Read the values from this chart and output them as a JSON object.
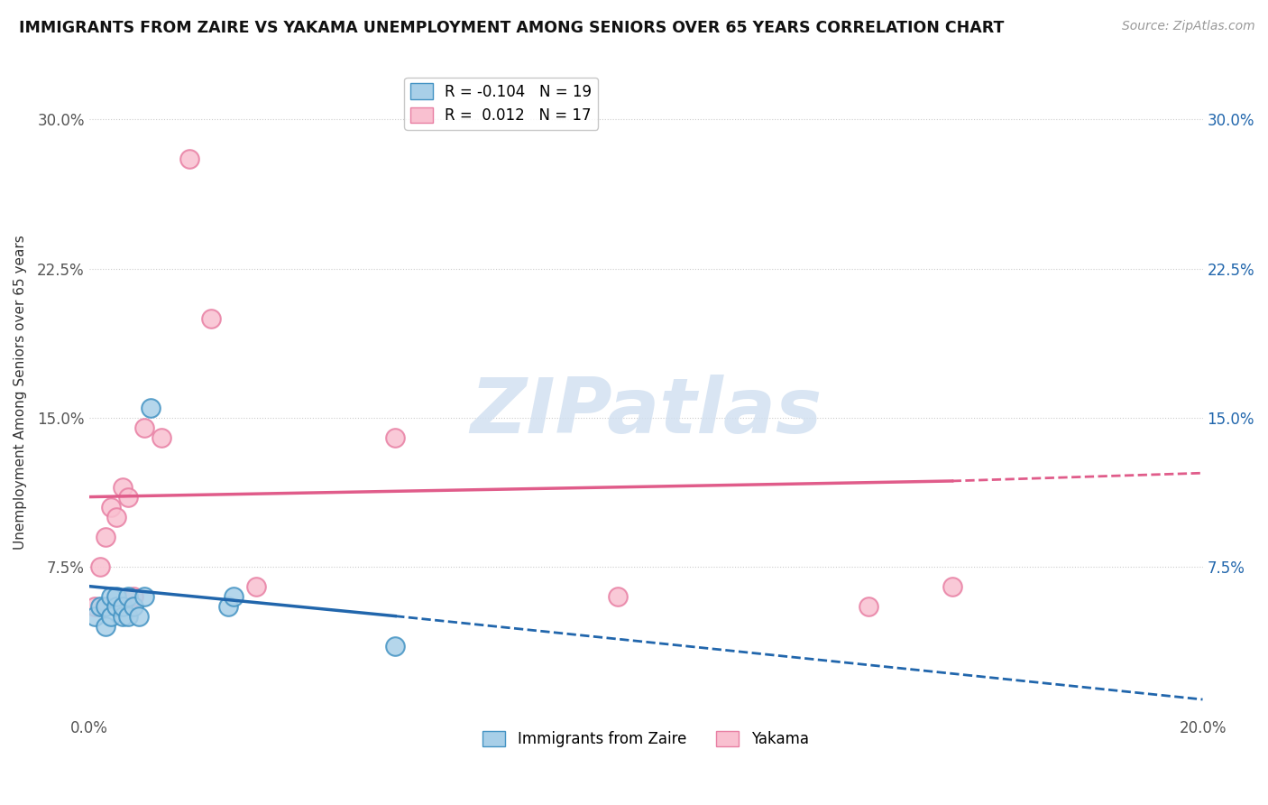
{
  "title": "IMMIGRANTS FROM ZAIRE VS YAKAMA UNEMPLOYMENT AMONG SENIORS OVER 65 YEARS CORRELATION CHART",
  "source": "Source: ZipAtlas.com",
  "xlabel": "",
  "ylabel": "Unemployment Among Seniors over 65 years",
  "xlim": [
    0.0,
    0.2
  ],
  "ylim": [
    0.0,
    0.325
  ],
  "xticks": [
    0.0,
    0.05,
    0.1,
    0.15,
    0.2
  ],
  "xticklabels": [
    "0.0%",
    "",
    "",
    "",
    "20.0%"
  ],
  "yticks": [
    0.075,
    0.15,
    0.225,
    0.3
  ],
  "yticklabels": [
    "7.5%",
    "15.0%",
    "22.5%",
    "30.0%"
  ],
  "blue_R": -0.104,
  "blue_N": 19,
  "pink_R": 0.012,
  "pink_N": 17,
  "blue_points_x": [
    0.001,
    0.002,
    0.003,
    0.003,
    0.004,
    0.004,
    0.005,
    0.005,
    0.006,
    0.006,
    0.007,
    0.007,
    0.008,
    0.009,
    0.01,
    0.011,
    0.025,
    0.026,
    0.055
  ],
  "blue_points_y": [
    0.05,
    0.055,
    0.045,
    0.055,
    0.05,
    0.06,
    0.055,
    0.06,
    0.05,
    0.055,
    0.06,
    0.05,
    0.055,
    0.05,
    0.06,
    0.155,
    0.055,
    0.06,
    0.035
  ],
  "pink_points_x": [
    0.001,
    0.002,
    0.003,
    0.004,
    0.005,
    0.006,
    0.007,
    0.008,
    0.01,
    0.013,
    0.018,
    0.022,
    0.03,
    0.055,
    0.095,
    0.14,
    0.155
  ],
  "pink_points_y": [
    0.055,
    0.075,
    0.09,
    0.105,
    0.1,
    0.115,
    0.11,
    0.06,
    0.145,
    0.14,
    0.28,
    0.2,
    0.065,
    0.14,
    0.06,
    0.055,
    0.065
  ],
  "blue_line_start_x": 0.0,
  "blue_line_start_y": 0.065,
  "blue_line_solid_end_x": 0.055,
  "blue_line_solid_end_y": 0.05,
  "blue_line_end_x": 0.2,
  "blue_line_end_y": 0.008,
  "pink_line_start_x": 0.0,
  "pink_line_start_y": 0.11,
  "pink_line_solid_end_x": 0.155,
  "pink_line_solid_end_y": 0.118,
  "pink_line_end_x": 0.2,
  "pink_line_end_y": 0.122,
  "blue_color": "#a8cfe8",
  "pink_color": "#f9c0d0",
  "blue_edge_color": "#4393c3",
  "pink_edge_color": "#e87fa3",
  "blue_line_color": "#2166ac",
  "pink_line_color": "#e05c8a",
  "watermark": "ZIPatlas",
  "grid_color": "#cccccc",
  "background_color": "#ffffff",
  "legend_label_blue": "Immigrants from Zaire",
  "legend_label_pink": "Yakama"
}
